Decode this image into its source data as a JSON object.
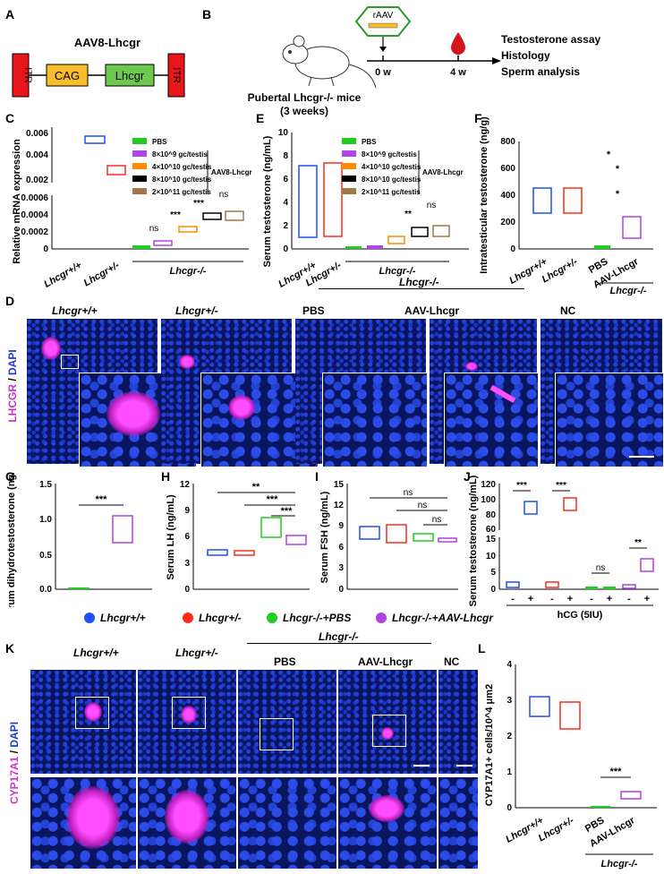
{
  "panels": {
    "A": "A",
    "B": "B",
    "C": "C",
    "D": "D",
    "E": "E",
    "F": "F",
    "G": "G",
    "H": "H",
    "I": "I",
    "J": "J",
    "K": "K",
    "L": "L"
  },
  "construct": {
    "title": "AAV8-Lhcgr",
    "itr": "ITR",
    "cag": "CAG",
    "lhcgr": "Lhcgr"
  },
  "design": {
    "virus": "rAAV",
    "mice_line1": "Pubertal Lhcgr-/- mice",
    "mice_line2": "(3 weeks)",
    "t0": "0 w",
    "t4": "4 w",
    "outcomes": [
      "Testosterone assay",
      "Histology",
      "Sperm analysis"
    ]
  },
  "legend_doses": [
    "PBS",
    "8×10^9 gc/testis",
    "4×10^10 gc/testis",
    "8×10^10 gc/testis",
    "2×10^11 gc/testis"
  ],
  "legend_doses_group": "AAV8-Lhcgr",
  "chart_C": {
    "type": "box",
    "ylabel": "Relative mRNA expression",
    "ticks_upper": [
      "0.002",
      "0.004",
      "0.006"
    ],
    "ticks_lower": [
      "0",
      "0.0002",
      "0.0004",
      "0.0006"
    ],
    "xlabels": [
      "Lhcgr+/+",
      "Lhcgr+/-"
    ],
    "group_label": "Lhcgr-/-",
    "sig": [
      "ns",
      "***",
      "***",
      "ns"
    ]
  },
  "chart_E": {
    "type": "box",
    "ylabel": "Serum testosterone (ng/mL)",
    "ticks": [
      "0",
      "2",
      "4",
      "6",
      "8",
      "10"
    ],
    "xlabels": [
      "Lhcgr+/+",
      "Lhcgr+/-"
    ],
    "group_label": "Lhcgr-/-",
    "sig": [
      "**",
      "ns"
    ]
  },
  "chart_F": {
    "type": "box",
    "ylabel": "Intratesticular testosterone (ng/g)",
    "ticks": [
      "0",
      "200",
      "400",
      "600",
      "800"
    ],
    "xlabels": [
      "Lhcgr+/+",
      "Lhcgr+/-",
      "PBS",
      "AAV-Lhcgr"
    ],
    "group_label": "Lhcgr-/-",
    "sig": [
      "*",
      "*",
      "*"
    ]
  },
  "micro_D": {
    "stain": "LHCGR",
    "sep": " / ",
    "dapi": "DAPI",
    "titles": [
      "Lhcgr+/+",
      "Lhcgr+/-",
      "PBS",
      "AAV-Lhcgr",
      "NC"
    ],
    "group_label": "Lhcgr-/-"
  },
  "chart_G": {
    "type": "box",
    "ylabel": "Serum dihydrotestosterone (ng/mL)",
    "ticks": [
      "0.0",
      "0.5",
      "1.0",
      "1.5"
    ],
    "sig": [
      "***"
    ]
  },
  "chart_H": {
    "type": "box",
    "ylabel": "Serum LH (ng/mL)",
    "ticks": [
      "0",
      "3",
      "6",
      "9",
      "12"
    ],
    "sig": [
      "**",
      "***",
      "***"
    ]
  },
  "chart_I": {
    "type": "box",
    "ylabel": "Serum FSH (ng/mL)",
    "ticks": [
      "0",
      "3",
      "6",
      "9",
      "12",
      "15"
    ],
    "sig": [
      "ns",
      "ns",
      "ns"
    ]
  },
  "chart_J": {
    "type": "box",
    "ylabel": "Serum testosterone (ng/mL)",
    "ticks_upper": [
      "60",
      "80",
      "100",
      "120"
    ],
    "ticks_lower": [
      "0",
      "5",
      "10",
      "15"
    ],
    "xlabel": "hCG (5IU)",
    "signs": [
      "-",
      "+"
    ],
    "sig": [
      "***",
      "***",
      "ns",
      "**"
    ]
  },
  "legend_groups": [
    "Lhcgr+/+",
    "Lhcgr+/-",
    "Lhcgr-/-+PBS",
    "Lhcgr-/-+AAV-Lhcgr"
  ],
  "colors": {
    "wt": "#1f4fff",
    "het": "#ff2a1a",
    "pbs": "#22cc22",
    "aav": "#b040e0",
    "d1": "#b044e8",
    "d2": "#ff8c00",
    "d3": "#000000",
    "d4": "#a0784a"
  },
  "micro_K": {
    "stain": "CYP17A1",
    "sep": " / ",
    "dapi": "DAPI",
    "titles": [
      "Lhcgr+/+",
      "Lhcgr+/-",
      "PBS",
      "AAV-Lhcgr",
      "NC"
    ],
    "group_label": "Lhcgr-/-"
  },
  "chart_L": {
    "type": "box",
    "ylabel": "CYP17A1+ cells/10^4 μm2",
    "ticks": [
      "0",
      "1",
      "2",
      "3",
      "4"
    ],
    "xlabels": [
      "Lhcgr+/+",
      "Lhcgr+/-",
      "PBS",
      "AAV-Lhcgr"
    ],
    "group_label": "Lhcgr-/-",
    "sig": [
      "***"
    ]
  }
}
